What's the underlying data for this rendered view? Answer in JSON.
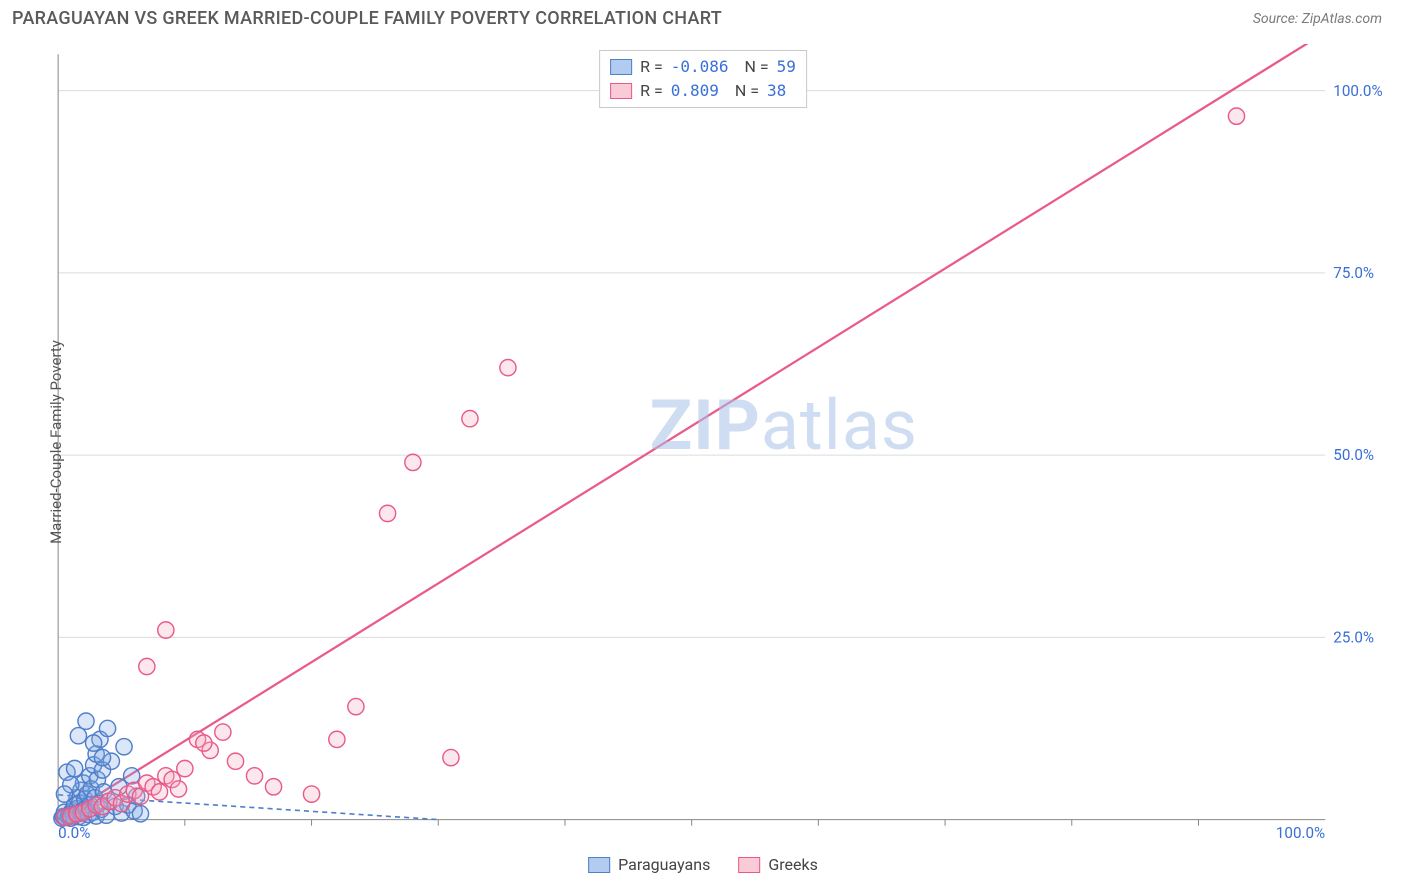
{
  "header": {
    "title": "PARAGUAYAN VS GREEK MARRIED-COUPLE FAMILY POVERTY CORRELATION CHART",
    "source": "Source: ZipAtlas.com"
  },
  "watermark": {
    "bold": "ZIP",
    "rest": "atlas"
  },
  "chart": {
    "type": "scatter",
    "background_color": "#ffffff",
    "grid_color": "#dcdcdc",
    "axis_color": "#888888",
    "tick_label_color": "#3a6fd8",
    "y_axis_label": "Married-Couple Family Poverty",
    "xlim": [
      0,
      100
    ],
    "ylim": [
      0,
      105
    ],
    "x_ticks": [
      {
        "v": 0,
        "label": "0.0%"
      },
      {
        "v": 100,
        "label": "100.0%"
      }
    ],
    "x_minor_ticks": [
      10,
      20,
      30,
      40,
      50,
      60,
      70,
      80,
      90
    ],
    "y_ticks": [
      {
        "v": 25,
        "label": "25.0%"
      },
      {
        "v": 50,
        "label": "50.0%"
      },
      {
        "v": 75,
        "label": "75.0%"
      },
      {
        "v": 100,
        "label": "100.0%"
      }
    ],
    "marker_radius": 8,
    "marker_fill_opacity": 0.28,
    "marker_stroke_width": 1.4,
    "series": [
      {
        "name": "Paraguayans",
        "color_fill": "#7fa9e6",
        "color_stroke": "#4f7fc9",
        "R": "-0.086",
        "N": "59",
        "trend": {
          "dash": "5,4",
          "width": 1.6,
          "color": "#4f7fc9",
          "x1": 0,
          "y1": 3.4,
          "x2": 30,
          "y2": 0
        },
        "points": [
          [
            0.3,
            0.2
          ],
          [
            0.4,
            0.4
          ],
          [
            0.6,
            0.3
          ],
          [
            0.5,
            1.0
          ],
          [
            0.8,
            0.4
          ],
          [
            0.9,
            0.7
          ],
          [
            1.0,
            0.2
          ],
          [
            1.1,
            1.2
          ],
          [
            1.2,
            0.5
          ],
          [
            1.3,
            2.0
          ],
          [
            1.4,
            0.8
          ],
          [
            1.5,
            1.5
          ],
          [
            1.5,
            3.0
          ],
          [
            1.6,
            0.4
          ],
          [
            1.7,
            2.3
          ],
          [
            1.8,
            0.9
          ],
          [
            1.8,
            4.0
          ],
          [
            1.9,
            1.2
          ],
          [
            2.0,
            0.3
          ],
          [
            2.0,
            5.0
          ],
          [
            2.1,
            2.8
          ],
          [
            2.2,
            1.6
          ],
          [
            2.3,
            3.5
          ],
          [
            2.4,
            0.7
          ],
          [
            2.5,
            6.0
          ],
          [
            2.5,
            2.0
          ],
          [
            2.6,
            4.2
          ],
          [
            2.7,
            1.0
          ],
          [
            2.8,
            7.5
          ],
          [
            2.9,
            3.0
          ],
          [
            3.0,
            0.5
          ],
          [
            3.0,
            9.0
          ],
          [
            3.1,
            5.5
          ],
          [
            3.2,
            2.2
          ],
          [
            3.3,
            11.0
          ],
          [
            3.4,
            1.4
          ],
          [
            3.5,
            6.8
          ],
          [
            3.6,
            3.8
          ],
          [
            3.8,
            0.6
          ],
          [
            3.9,
            12.5
          ],
          [
            4.0,
            2.5
          ],
          [
            4.2,
            8.0
          ],
          [
            4.5,
            1.8
          ],
          [
            4.8,
            4.5
          ],
          [
            5.0,
            0.9
          ],
          [
            5.2,
            10.0
          ],
          [
            5.5,
            2.0
          ],
          [
            5.8,
            6.0
          ],
          [
            6.0,
            1.2
          ],
          [
            6.2,
            3.2
          ],
          [
            6.5,
            0.8
          ],
          [
            2.2,
            13.5
          ],
          [
            1.6,
            11.5
          ],
          [
            2.8,
            10.5
          ],
          [
            3.5,
            8.5
          ],
          [
            0.7,
            6.5
          ],
          [
            1.0,
            4.8
          ],
          [
            1.3,
            7.0
          ],
          [
            0.5,
            3.5
          ]
        ]
      },
      {
        "name": "Greeks",
        "color_fill": "#f4a8bd",
        "color_stroke": "#e95a8b",
        "R": " 0.809",
        "N": "38",
        "trend": {
          "dash": "none",
          "width": 2.2,
          "color": "#e95a8b",
          "x1": 0,
          "y1": 0,
          "x2": 100,
          "y2": 108
        },
        "points": [
          [
            0.5,
            0.3
          ],
          [
            1.0,
            0.5
          ],
          [
            1.5,
            0.8
          ],
          [
            2.0,
            1.0
          ],
          [
            2.5,
            1.5
          ],
          [
            3.0,
            2.0
          ],
          [
            3.5,
            1.8
          ],
          [
            4.0,
            2.5
          ],
          [
            4.5,
            3.0
          ],
          [
            5.0,
            2.2
          ],
          [
            5.5,
            3.5
          ],
          [
            6.0,
            4.0
          ],
          [
            6.5,
            3.2
          ],
          [
            7.0,
            5.0
          ],
          [
            7.5,
            4.5
          ],
          [
            8.0,
            3.8
          ],
          [
            8.5,
            6.0
          ],
          [
            9.0,
            5.5
          ],
          [
            9.5,
            4.2
          ],
          [
            10.0,
            7.0
          ],
          [
            11.0,
            11.0
          ],
          [
            12.0,
            9.5
          ],
          [
            13.0,
            12.0
          ],
          [
            14.0,
            8.0
          ],
          [
            7.0,
            21.0
          ],
          [
            8.5,
            26.0
          ],
          [
            11.5,
            10.5
          ],
          [
            17.0,
            4.5
          ],
          [
            22.0,
            11.0
          ],
          [
            23.5,
            15.5
          ],
          [
            26.0,
            42.0
          ],
          [
            28.0,
            49.0
          ],
          [
            31.0,
            8.5
          ],
          [
            32.5,
            55.0
          ],
          [
            35.5,
            62.0
          ],
          [
            20.0,
            3.5
          ],
          [
            15.5,
            6.0
          ],
          [
            93.0,
            96.5
          ]
        ]
      }
    ],
    "bottom_legend": [
      {
        "label": "Paraguayans",
        "fill": "#7fa9e6",
        "stroke": "#4f7fc9"
      },
      {
        "label": "Greeks",
        "fill": "#f4a8bd",
        "stroke": "#e95a8b"
      }
    ],
    "corr_value_color": "#3a6fd8"
  }
}
